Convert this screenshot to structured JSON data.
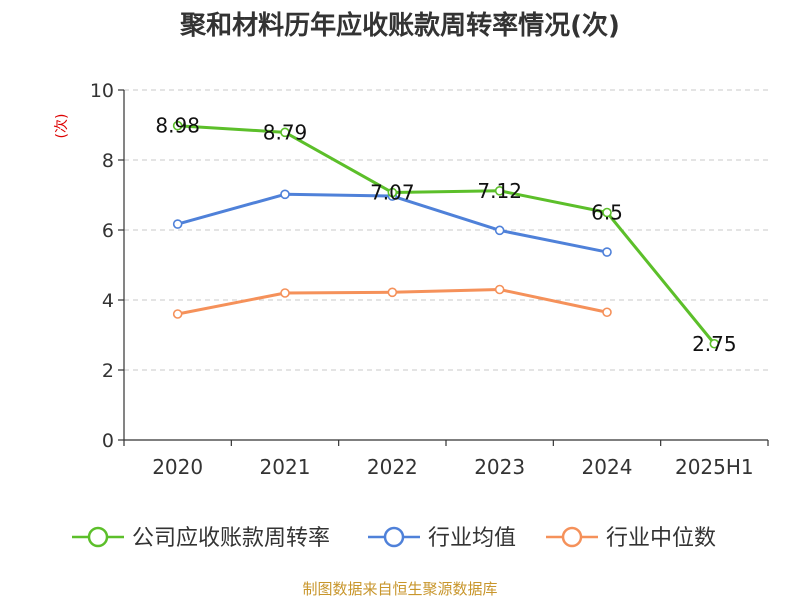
{
  "chart_data": {
    "type": "line",
    "title": "聚和材料历年应收账款周转率情况(次)",
    "ylabel": "(次)",
    "xlabel": "",
    "categories": [
      "2020",
      "2021",
      "2022",
      "2023",
      "2024",
      "2025H1"
    ],
    "ylim": [
      0,
      10
    ],
    "yticks": [
      0,
      2,
      4,
      6,
      8,
      10
    ],
    "grid": true,
    "legend_position": "bottom",
    "series": [
      {
        "name": "公司应收账款周转率",
        "color": "#5cbf2a",
        "values": [
          8.98,
          8.79,
          7.07,
          7.12,
          6.5,
          2.75
        ],
        "labels": [
          "8.98",
          "8.79",
          "7.07",
          "7.12",
          "6.5",
          "2.75"
        ]
      },
      {
        "name": "行业均值",
        "color": "#4f81d9",
        "values": [
          6.17,
          7.02,
          6.97,
          5.99,
          5.37,
          null
        ]
      },
      {
        "name": "行业中位数",
        "color": "#f5915a",
        "values": [
          3.6,
          4.2,
          4.22,
          4.3,
          3.65,
          null
        ]
      }
    ]
  },
  "source": "制图数据来自恒生聚源数据库"
}
